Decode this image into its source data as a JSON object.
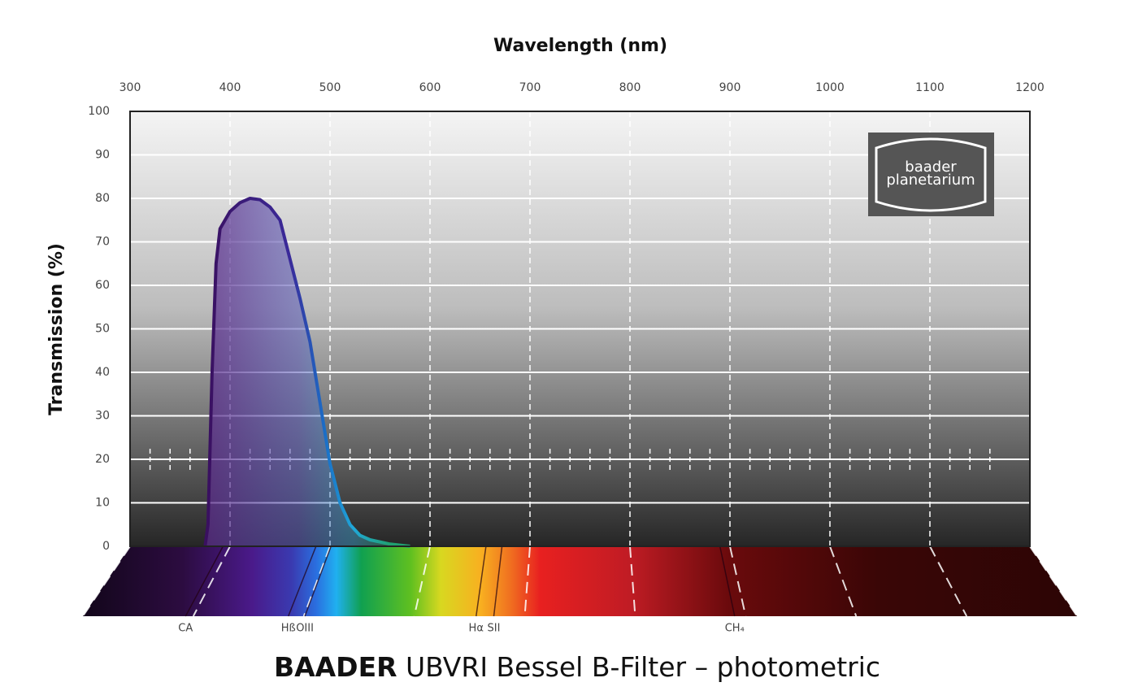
{
  "chart_data": {
    "type": "line",
    "brand": "BAADER",
    "title": "UBVRI Bessel B-Filter – photometric",
    "x_label": "Wavelength (nm)",
    "y_label": "Transmission (%)",
    "logo": [
      "baader",
      "planetarium"
    ],
    "xlim": [
      300,
      1200
    ],
    "xticks": [
      300,
      400,
      500,
      600,
      700,
      800,
      900,
      1000,
      1100,
      1200
    ],
    "ylim": [
      0,
      100
    ],
    "yticks": [
      0,
      10,
      20,
      30,
      40,
      50,
      60,
      70,
      80,
      90,
      100
    ],
    "grid": true,
    "series": [
      {
        "name": "B-Filter",
        "color": "#3a1a7a",
        "x": [
          375,
          378,
          382,
          386,
          390,
          400,
          410,
          420,
          430,
          440,
          450,
          460,
          470,
          480,
          490,
          500,
          510,
          520,
          530,
          540,
          560,
          580
        ],
        "values": [
          0,
          5,
          40,
          65,
          73,
          77,
          79,
          80,
          79.7,
          78,
          75,
          66,
          57,
          47,
          33,
          19,
          10,
          5,
          2.5,
          1.5,
          0.5,
          0
        ]
      }
    ],
    "emission_lines": [
      {
        "label": "CA",
        "x": 393
      },
      {
        "label": "Hß",
        "x": 486
      },
      {
        "label": "OIII",
        "x": 501
      },
      {
        "label": "Hα",
        "x": 656
      },
      {
        "label": "SII",
        "x": 672
      },
      {
        "label": "CH₄",
        "x": 890
      }
    ]
  }
}
